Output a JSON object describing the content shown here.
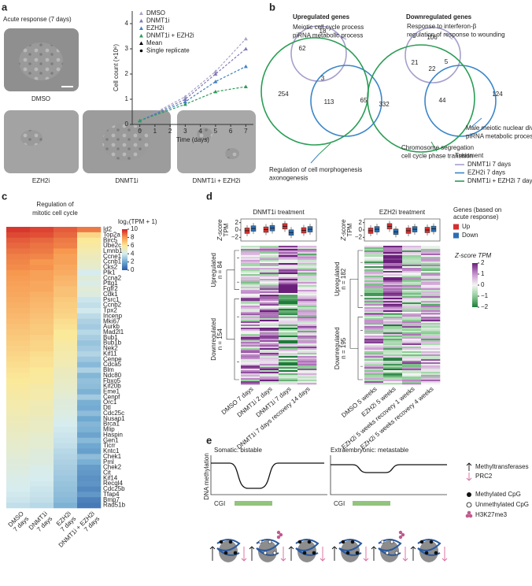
{
  "panel_a": {
    "label": "a",
    "title": "Acute response (7 days)",
    "images": [
      "DMSO",
      "EZH2i",
      "DNMT1i",
      "DNMT1i + EZH2i"
    ]
  },
  "chart_data": [
    {
      "type": "line",
      "ylabel": "Cell count (×10⁶)",
      "xlabel": "Time (days)",
      "x": [
        0,
        3,
        5,
        7
      ],
      "xlim": [
        -0.5,
        7.5
      ],
      "xticks": [
        0,
        1,
        2,
        3,
        4,
        5,
        6,
        7
      ],
      "ylim": [
        0,
        4.5
      ],
      "yticks": [
        0,
        1,
        2,
        3,
        4
      ],
      "series": [
        {
          "name": "DMSO",
          "color": "#a9a4c8",
          "values": [
            0.15,
            1.1,
            2.1,
            3.4
          ]
        },
        {
          "name": "DNMT1i",
          "color": "#7e79b8",
          "values": [
            0.15,
            1.0,
            2.0,
            3.0
          ]
        },
        {
          "name": "EZH2i",
          "color": "#3f80c2",
          "values": [
            0.15,
            0.9,
            1.7,
            2.3
          ]
        },
        {
          "name": "DNMT1i + EZH2i",
          "color": "#2e9a58",
          "values": [
            0.15,
            0.8,
            1.3,
            1.5
          ]
        }
      ],
      "legend_extra": [
        "Mean",
        "Single replicate"
      ]
    },
    {
      "type": "heatmap",
      "label": "c",
      "title_lines": [
        "Regulation of",
        "mitotic cell cycle"
      ],
      "rows": [
        "Id2",
        "Top2a",
        "Birc5",
        "Ube2c",
        "Lmnb1",
        "Ccne1",
        "Ccnb1",
        "Cks2",
        "Plk1",
        "Ccna2",
        "Pttg1",
        "Fgfr2",
        "Cdk1",
        "Psrc1",
        "Ccnb2",
        "Tpx2",
        "Incenp",
        "Mki67",
        "Aurkb",
        "Mad2l1",
        "Bub1",
        "Bub1b",
        "Nek2",
        "Kif11",
        "Cenpe",
        "Cdca5",
        "Blm",
        "Ndc80",
        "Fbxo5",
        "Kif20b",
        "Eme1",
        "Cenpf",
        "Orc1",
        "Dtl",
        "Cdc25c",
        "Nusap1",
        "Brca1",
        "Mlip",
        "Haspin",
        "Gen1",
        "Ticrr",
        "Kntc1",
        "Chek1",
        "Pml",
        "Chek2",
        "Cit",
        "Kif14",
        "Recql4",
        "Cdc25b",
        "Tfap4",
        "Bmp7",
        "Rad51b"
      ],
      "columns": [
        [
          "DMSO",
          "7 days"
        ],
        [
          "DNMT1i",
          "7 days"
        ],
        [
          "EZH2i",
          "7 days"
        ],
        [
          "DNMT1i + EZH2i",
          "7 days"
        ]
      ],
      "values": [
        [
          9.6,
          9.3,
          9.0,
          8.8,
          8.6,
          8.4,
          8.3,
          8.2,
          8.0,
          7.9,
          7.8,
          7.7,
          7.6,
          7.5,
          7.4,
          7.3,
          7.2,
          7.1,
          7.0,
          6.9,
          6.8,
          6.7,
          6.6,
          6.5,
          6.4,
          6.3,
          6.2,
          6.1,
          6.0,
          5.9,
          5.8,
          5.7,
          5.6,
          5.5,
          5.4,
          5.3,
          5.2,
          5.1,
          5.0,
          4.9,
          4.8,
          4.7,
          4.6,
          4.5,
          4.4,
          4.3,
          4.2,
          4.1,
          4.0,
          3.9,
          3.8,
          3.6
        ],
        [
          9.4,
          9.2,
          8.8,
          8.6,
          8.5,
          8.3,
          8.0,
          8.1,
          7.8,
          7.8,
          7.6,
          7.6,
          7.4,
          7.3,
          7.2,
          7.1,
          7.0,
          6.9,
          6.8,
          6.8,
          6.6,
          6.5,
          6.5,
          6.3,
          6.2,
          6.2,
          6.0,
          5.9,
          5.9,
          5.7,
          5.6,
          5.6,
          5.4,
          5.3,
          5.3,
          5.1,
          5.0,
          5.0,
          4.8,
          4.7,
          4.7,
          4.5,
          4.4,
          4.4,
          4.2,
          4.1,
          4.0,
          3.9,
          3.8,
          3.7,
          3.6,
          3.4
        ],
        [
          9.0,
          8.8,
          8.5,
          8.4,
          8.0,
          7.8,
          7.8,
          7.6,
          7.5,
          7.3,
          7.2,
          7.0,
          7.0,
          6.8,
          6.7,
          6.6,
          6.5,
          6.3,
          6.2,
          6.0,
          6.0,
          5.8,
          5.7,
          5.6,
          5.5,
          5.4,
          5.2,
          5.1,
          5.0,
          4.9,
          4.8,
          4.6,
          4.5,
          4.4,
          4.3,
          4.2,
          4.0,
          3.9,
          3.8,
          3.7,
          3.6,
          3.4,
          3.3,
          3.2,
          3.1,
          3.0,
          2.9,
          2.8,
          2.7,
          2.6,
          2.5,
          2.3
        ],
        [
          8.5,
          6.5,
          6.0,
          5.8,
          5.5,
          5.2,
          5.0,
          4.8,
          4.0,
          4.5,
          4.2,
          4.6,
          4.4,
          3.8,
          3.6,
          3.9,
          3.5,
          3.2,
          3.0,
          3.4,
          3.1,
          2.8,
          3.0,
          3.3,
          2.9,
          2.5,
          3.2,
          2.4,
          2.7,
          2.6,
          2.3,
          3.0,
          2.2,
          2.1,
          2.6,
          2.0,
          2.4,
          2.3,
          1.9,
          2.5,
          2.0,
          1.8,
          2.6,
          2.2,
          1.7,
          1.6,
          1.4,
          1.5,
          1.2,
          1.6,
          1.0,
          0.8
        ]
      ],
      "colorbar": {
        "title": "log₂(TPM + 1)",
        "lim": [
          0,
          10
        ],
        "ticks": [
          0,
          2,
          4,
          6,
          8,
          10
        ]
      }
    }
  ],
  "panel_b": {
    "label": "b",
    "venns": [
      {
        "title": "Upregulated genes",
        "regions": [
          18,
          62,
          3,
          254,
          113,
          65
        ],
        "annotations": [
          [
            "Meiotic cell cycle process",
            "piRNA metabolic process"
          ],
          [
            "Regulation of cell morphogenesis",
            "axonogenesis"
          ]
        ]
      },
      {
        "title": "Downregulated genes",
        "regions": [
          106,
          21,
          22,
          5,
          332,
          44,
          124
        ],
        "annotations": [
          [
            "Response to interferon-β",
            "regulation of response to wounding"
          ],
          [
            "Male meiotic nuclear division",
            "piRNA metabolic process"
          ],
          [
            "Chromosome segregation",
            "cell cycle phase transition"
          ]
        ]
      }
    ],
    "legend": {
      "title": "Treatment",
      "items": [
        {
          "name": "DNMT1i 7 days",
          "color": "#a6a0cc"
        },
        {
          "name": "EZH2i 7 days",
          "color": "#3b86c8"
        },
        {
          "name": "DNMT1i + EZH2i 7 days",
          "color": "#2a9d55"
        }
      ]
    }
  },
  "panel_d": {
    "label": "d",
    "ylabel_lines": [
      "Z-score",
      "TPM"
    ],
    "box_lim": [
      -3,
      3
    ],
    "box_ticks": [
      2,
      0,
      {
        "value": -2,
        "label": "−2"
      }
    ],
    "panels": [
      {
        "title": "DNMT1i treatment",
        "groups": [
          [
            "Upregulated",
            "n = 84"
          ],
          [
            "Downregulated",
            "n = 154"
          ]
        ],
        "columns": [
          "DMSO 7 days",
          "DNMT1i 2 days",
          "DNMT1i 7 days",
          "DNMT1i 7 days recovery 14 days"
        ],
        "box_medians": {
          "up": [
            -0.2,
            0.1,
            1.0,
            -0.1
          ],
          "down": [
            0.4,
            0.5,
            -0.7,
            0.2
          ]
        }
      },
      {
        "title": "EZH2i treatment",
        "groups": [
          [
            "Upregulated",
            "n = 182"
          ],
          [
            "Downregulated",
            "n = 195"
          ]
        ],
        "columns": [
          "DMSO 5 weeks",
          "EZH2i 5 weeks",
          "EZH2i 5 weeks recovery 1 weeks",
          "EZH2i 5 weeks recovery 4 weeks"
        ],
        "box_medians": {
          "up": [
            -0.2,
            1.0,
            -0.2,
            0.0
          ],
          "down": [
            0.2,
            -0.5,
            0.2,
            0.3
          ]
        }
      }
    ],
    "legend": {
      "title_lines": [
        "Genes (based on",
        "acute response)"
      ],
      "items": [
        {
          "name": "Up",
          "color": "#d62f2f"
        },
        {
          "name": "Down",
          "color": "#2a6fb5"
        }
      ]
    },
    "colorbar": {
      "title": "Z-score TPM",
      "lim": [
        -2,
        2
      ],
      "ticks": [
        2,
        1,
        0,
        {
          "value": -1,
          "label": "−1"
        },
        {
          "value": -2,
          "label": "−2"
        }
      ]
    }
  },
  "panel_e": {
    "label": "e",
    "left_title": "Somatic: bistable",
    "right_title": "Extraembryonic: metastable",
    "ylabel": "DNA methylation",
    "cgi": "CGI",
    "legend": [
      "Methyltransferases",
      "PRC2",
      "Methylated CpG",
      "Unmethylated CpG",
      "H3K27me3"
    ]
  }
}
